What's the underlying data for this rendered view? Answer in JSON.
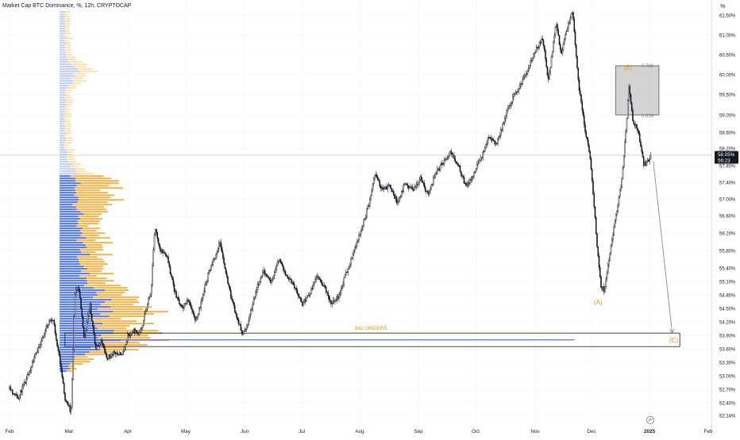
{
  "header": {
    "title": "Market Cap BTC Dominance, %, 12h, CRYPTOCAP",
    "unit_label": "%"
  },
  "price_scale": {
    "ticks": [
      "61.50%",
      "61.00%",
      "60.50%",
      "60.00%",
      "59.50%",
      "59.00%",
      "58.60%",
      "58.20%",
      "57.80%",
      "57.40%",
      "57.00%",
      "56.60%",
      "56.20%",
      "55.80%",
      "55.40%",
      "55.10%",
      "54.80%",
      "54.50%",
      "54.20%",
      "53.90%",
      "53.60%",
      "53.30%",
      "53.00%",
      "52.70%",
      "52.40%",
      "52.14%"
    ],
    "last_price_tag": "58.05%",
    "countdown_tag": "56:23"
  },
  "time_axis": {
    "labels": [
      "Feb",
      "Mar",
      "Apr",
      "May",
      "Jun",
      "Jul",
      "Aug",
      "Sep",
      "Oct",
      "Nov",
      "Dec",
      "2025",
      "Feb"
    ]
  },
  "annotations": {
    "fib_top": "0.786",
    "fib_bottom": "0.618",
    "wave_a": "(A)",
    "wave_b": "(B)",
    "wave_c": "(C)",
    "zone_label": "BIG ORDERS"
  },
  "colors": {
    "candle": "#131722",
    "volume_blue": "#5b7ff2",
    "volume_blue_light": "#c5d2f8",
    "volume_orange": "#f7b955",
    "volume_orange_light": "#fde4b8",
    "accent_orange": "#e8960c",
    "zone_fill": "#c8c8c8",
    "price_tag_bg": "#131722"
  },
  "chart_data": {
    "type": "candlestick",
    "title": "Market Cap BTC Dominance, %, 12h, CRYPTOCAP",
    "ylabel": "%",
    "ylim": [
      52.14,
      61.8
    ],
    "x_range": [
      "2024-02-01",
      "2025-02-01"
    ],
    "last_value": 58.05,
    "path": [
      [
        "2024-02-01",
        52.7
      ],
      [
        "2024-02-05",
        52.5
      ],
      [
        "2024-02-09",
        52.9
      ],
      [
        "2024-02-13",
        53.4
      ],
      [
        "2024-02-16",
        53.7
      ],
      [
        "2024-02-19",
        54.1
      ],
      [
        "2024-02-22",
        54.3
      ],
      [
        "2024-02-25",
        53.5
      ],
      [
        "2024-02-28",
        52.5
      ],
      [
        "2024-03-02",
        52.2
      ],
      [
        "2024-03-04",
        54.8
      ],
      [
        "2024-03-06",
        55.0
      ],
      [
        "2024-03-09",
        53.8
      ],
      [
        "2024-03-12",
        54.6
      ],
      [
        "2024-03-15",
        53.6
      ],
      [
        "2024-03-18",
        53.8
      ],
      [
        "2024-03-21",
        53.4
      ],
      [
        "2024-03-25",
        53.5
      ],
      [
        "2024-03-29",
        53.5
      ],
      [
        "2024-04-01",
        53.9
      ],
      [
        "2024-04-04",
        54.0
      ],
      [
        "2024-04-07",
        53.9
      ],
      [
        "2024-04-10",
        54.4
      ],
      [
        "2024-04-13",
        54.9
      ],
      [
        "2024-04-15",
        56.3
      ],
      [
        "2024-04-18",
        55.8
      ],
      [
        "2024-04-21",
        55.7
      ],
      [
        "2024-04-25",
        54.9
      ],
      [
        "2024-04-29",
        54.5
      ],
      [
        "2024-05-02",
        54.7
      ],
      [
        "2024-05-06",
        54.2
      ],
      [
        "2024-05-09",
        54.6
      ],
      [
        "2024-05-13",
        55.3
      ],
      [
        "2024-05-16",
        55.6
      ],
      [
        "2024-05-19",
        56.0
      ],
      [
        "2024-05-22",
        55.3
      ],
      [
        "2024-05-25",
        54.7
      ],
      [
        "2024-05-28",
        54.3
      ],
      [
        "2024-05-31",
        53.9
      ],
      [
        "2024-06-03",
        54.2
      ],
      [
        "2024-06-07",
        54.9
      ],
      [
        "2024-06-11",
        55.3
      ],
      [
        "2024-06-15",
        55.1
      ],
      [
        "2024-06-19",
        55.6
      ],
      [
        "2024-06-23",
        55.2
      ],
      [
        "2024-06-27",
        55.0
      ],
      [
        "2024-07-01",
        54.6
      ],
      [
        "2024-07-05",
        54.8
      ],
      [
        "2024-07-09",
        55.2
      ],
      [
        "2024-07-13",
        55.0
      ],
      [
        "2024-07-17",
        54.6
      ],
      [
        "2024-07-21",
        54.8
      ],
      [
        "2024-07-25",
        55.3
      ],
      [
        "2024-07-29",
        55.8
      ],
      [
        "2024-08-02",
        56.3
      ],
      [
        "2024-08-06",
        56.9
      ],
      [
        "2024-08-09",
        57.6
      ],
      [
        "2024-08-13",
        57.2
      ],
      [
        "2024-08-17",
        57.3
      ],
      [
        "2024-08-21",
        56.9
      ],
      [
        "2024-08-25",
        57.4
      ],
      [
        "2024-08-29",
        57.2
      ],
      [
        "2024-09-02",
        57.5
      ],
      [
        "2024-09-06",
        57.1
      ],
      [
        "2024-09-10",
        57.6
      ],
      [
        "2024-09-14",
        57.9
      ],
      [
        "2024-09-18",
        58.1
      ],
      [
        "2024-09-22",
        57.8
      ],
      [
        "2024-09-26",
        57.3
      ],
      [
        "2024-09-30",
        57.6
      ],
      [
        "2024-10-04",
        58.0
      ],
      [
        "2024-10-08",
        58.5
      ],
      [
        "2024-10-12",
        58.3
      ],
      [
        "2024-10-16",
        58.9
      ],
      [
        "2024-10-20",
        59.4
      ],
      [
        "2024-10-24",
        59.7
      ],
      [
        "2024-10-28",
        60.1
      ],
      [
        "2024-11-01",
        60.6
      ],
      [
        "2024-11-05",
        60.9
      ],
      [
        "2024-11-08",
        59.8
      ],
      [
        "2024-11-12",
        61.3
      ],
      [
        "2024-11-15",
        60.5
      ],
      [
        "2024-11-18",
        61.2
      ],
      [
        "2024-11-21",
        61.6
      ],
      [
        "2024-11-24",
        59.8
      ],
      [
        "2024-11-27",
        58.8
      ],
      [
        "2024-11-30",
        58.1
      ],
      [
        "2024-12-02",
        57.1
      ],
      [
        "2024-12-04",
        55.9
      ],
      [
        "2024-12-06",
        55.0
      ],
      [
        "2024-12-08",
        54.9
      ],
      [
        "2024-12-11",
        55.8
      ],
      [
        "2024-12-14",
        56.6
      ],
      [
        "2024-12-17",
        57.4
      ],
      [
        "2024-12-19",
        58.4
      ],
      [
        "2024-12-21",
        59.7
      ],
      [
        "2024-12-23",
        58.9
      ],
      [
        "2024-12-26",
        58.6
      ],
      [
        "2024-12-29",
        57.8
      ],
      [
        "2024-12-31",
        57.9
      ],
      [
        "2025-01-02",
        58.05
      ]
    ],
    "annotations": [
      {
        "label": "(A)",
        "date": "2024-12-07",
        "value": 54.8
      },
      {
        "label": "(B)",
        "date": "2024-12-21",
        "value": 60.05
      },
      {
        "label": "(C)",
        "date": "2025-01-13",
        "value": 53.9
      }
    ],
    "fib_zone": {
      "date_start": "2024-12-14",
      "date_end": "2025-01-06",
      "top": 60.22,
      "bottom": 59.0,
      "top_label": "0.786",
      "bottom_label": "0.618"
    },
    "orders_zone": {
      "label": "BIG ORDERS",
      "date_start": "2024-02-28",
      "date_end": "2025-01-17",
      "top": 53.95,
      "bottom": 53.65
    },
    "support_line": {
      "value": 53.8,
      "date_start": "2024-02-28",
      "date_end": "2024-11-22"
    },
    "projection": {
      "from": [
        "2025-01-03",
        57.9
      ],
      "to": [
        "2025-01-13",
        53.95
      ]
    }
  }
}
